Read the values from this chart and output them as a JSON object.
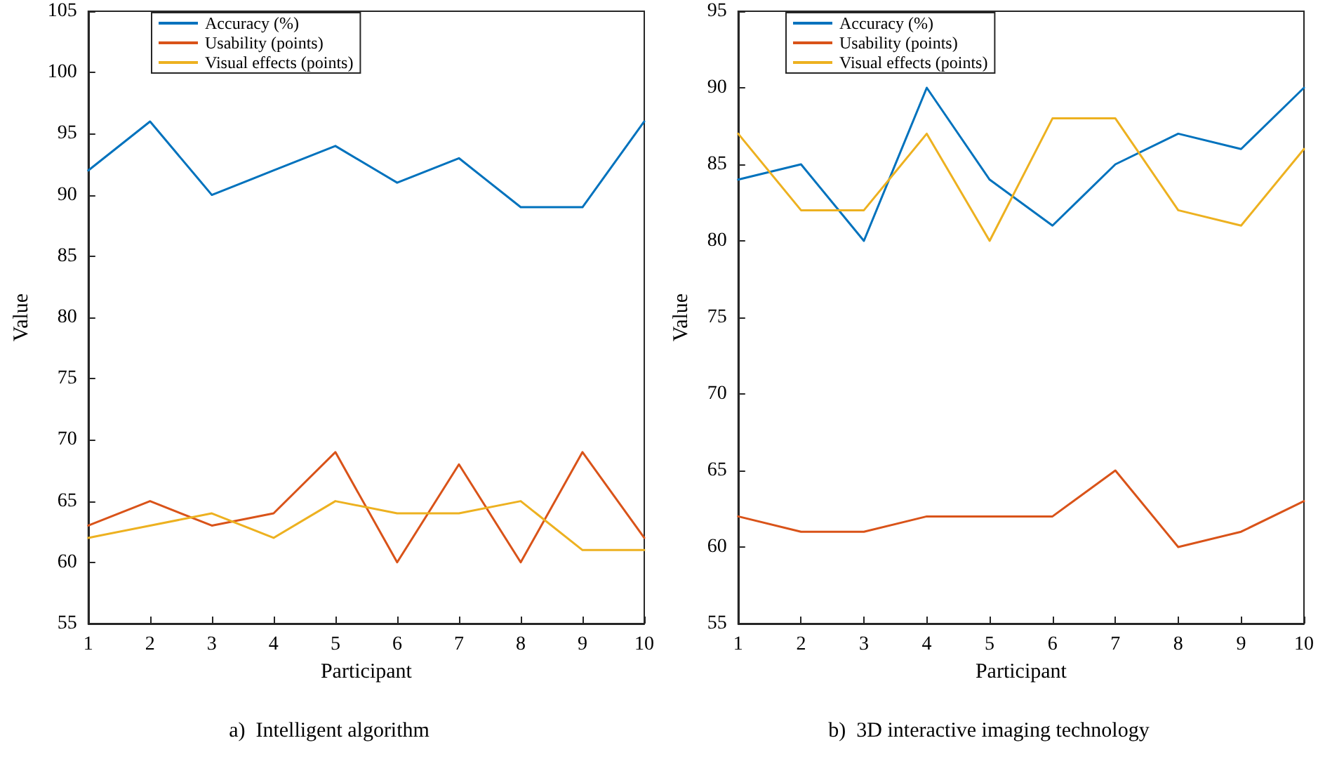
{
  "chart_data": [
    {
      "type": "line",
      "title": "a)  Intelligent algorithm",
      "xlabel": "Participant",
      "ylabel": "Value",
      "x": [
        1,
        2,
        3,
        4,
        5,
        6,
        7,
        8,
        9,
        10
      ],
      "xlim": [
        1,
        10
      ],
      "xticks": [
        1,
        2,
        3,
        4,
        5,
        6,
        7,
        8,
        9,
        10
      ],
      "ylim": [
        55,
        105
      ],
      "yticks": [
        55,
        60,
        65,
        70,
        75,
        80,
        85,
        90,
        95,
        100,
        105
      ],
      "grid": false,
      "legend": "top left",
      "marker": "none",
      "line_style": "solid",
      "series": [
        {
          "name": "Accuracy (%)",
          "color": "#0072bd",
          "values": [
            92,
            96,
            90,
            92,
            94,
            91,
            93,
            89,
            89,
            96
          ]
        },
        {
          "name": "Usability (points)",
          "color": "#d95319",
          "values": [
            63,
            65,
            63,
            64,
            69,
            60,
            68,
            60,
            69,
            62
          ]
        },
        {
          "name": "Visual effects (points)",
          "color": "#edb120",
          "values": [
            62,
            63,
            64,
            62,
            65,
            64,
            64,
            65,
            61,
            61
          ]
        }
      ]
    },
    {
      "type": "line",
      "title": "b)  3D interactive imaging technology",
      "xlabel": "Participant",
      "ylabel": "Value",
      "x": [
        1,
        2,
        3,
        4,
        5,
        6,
        7,
        8,
        9,
        10
      ],
      "xlim": [
        1,
        10
      ],
      "xticks": [
        1,
        2,
        3,
        4,
        5,
        6,
        7,
        8,
        9,
        10
      ],
      "ylim": [
        55,
        95
      ],
      "yticks": [
        55,
        60,
        65,
        70,
        75,
        80,
        85,
        90,
        95
      ],
      "grid": false,
      "legend": "top left",
      "marker": "none",
      "line_style": "solid",
      "series": [
        {
          "name": "Accuracy (%)",
          "color": "#0072bd",
          "values": [
            84,
            85,
            80,
            90,
            84,
            81,
            85,
            87,
            86,
            90
          ]
        },
        {
          "name": "Usability (points)",
          "color": "#d95319",
          "values": [
            62,
            61,
            61,
            62,
            62,
            62,
            65,
            60,
            61,
            63
          ]
        },
        {
          "name": "Visual effects (points)",
          "color": "#edb120",
          "values": [
            87,
            82,
            82,
            87,
            80,
            88,
            88,
            82,
            81,
            86
          ]
        }
      ]
    }
  ]
}
